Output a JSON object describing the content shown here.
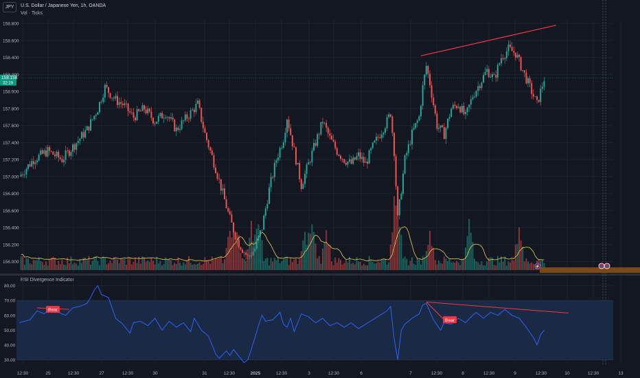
{
  "header": {
    "symbol": "JPY",
    "title": "U.S. Dollar / Japanese Yen, 1h, OANDA",
    "volume_label": "Vol · Ticks",
    "rsi_title": "RSI Divergence Indicator"
  },
  "price_badge": {
    "price": "158.158",
    "countdown": "32:19"
  },
  "colors": {
    "background": "#131722",
    "grid": "#1e222d",
    "up": "#26a69a",
    "down": "#ef5350",
    "volume_ma": "#e6d04a",
    "rsi_line": "#2962ff",
    "rsi_band": "#1b2a44",
    "divergence": "#f23645",
    "text": "#b2b5be",
    "price_badge": "#089981"
  },
  "chart_data": [
    {
      "type": "candlestick",
      "title": "U.S. Dollar / Japanese Yen, 1h, OANDA",
      "y_ticks": [
        "158.800",
        "158.600",
        "158.400",
        "158.200",
        "158.000",
        "157.800",
        "157.600",
        "157.400",
        "157.200",
        "157.000",
        "156.800",
        "156.600",
        "156.400",
        "156.200",
        "156.000"
      ],
      "ylim": [
        155.9,
        158.85
      ],
      "x_ticks": [
        "12:30",
        "25",
        "12:30",
        "27",
        "12:30",
        "30",
        "31",
        "12:30",
        "2025",
        "12:30",
        "3",
        "12:30",
        "6",
        "7",
        "12:30",
        "8",
        "12:30",
        "9",
        "12:30",
        "10",
        "12:30",
        "13"
      ],
      "last_price": 158.158,
      "close_path": [
        [
          0,
          157.0
        ],
        [
          8,
          157.2
        ],
        [
          16,
          157.3
        ],
        [
          24,
          157.2
        ],
        [
          30,
          157.35
        ],
        [
          38,
          157.55
        ],
        [
          44,
          157.8
        ],
        [
          48,
          158.05
        ],
        [
          54,
          157.9
        ],
        [
          58,
          157.85
        ],
        [
          64,
          157.7
        ],
        [
          70,
          157.8
        ],
        [
          76,
          157.65
        ],
        [
          82,
          157.75
        ],
        [
          88,
          157.55
        ],
        [
          94,
          157.7
        ],
        [
          100,
          157.85
        ],
        [
          104,
          157.5
        ],
        [
          110,
          157.1
        ],
        [
          114,
          156.8
        ],
        [
          118,
          156.5
        ],
        [
          122,
          156.25
        ],
        [
          128,
          156.05
        ],
        [
          132,
          156.15
        ],
        [
          136,
          156.4
        ],
        [
          140,
          156.85
        ],
        [
          144,
          157.2
        ],
        [
          148,
          157.45
        ],
        [
          150,
          157.7
        ],
        [
          154,
          157.3
        ],
        [
          158,
          156.9
        ],
        [
          162,
          157.15
        ],
        [
          166,
          157.4
        ],
        [
          170,
          157.65
        ],
        [
          174,
          157.45
        ],
        [
          178,
          157.3
        ],
        [
          182,
          157.2
        ],
        [
          186,
          157.15
        ],
        [
          190,
          157.25
        ],
        [
          194,
          157.15
        ],
        [
          198,
          157.35
        ],
        [
          202,
          157.5
        ],
        [
          206,
          157.65
        ],
        [
          208,
          157.75
        ],
        [
          210,
          157.3
        ],
        [
          212,
          156.5
        ],
        [
          216,
          157.2
        ],
        [
          220,
          157.5
        ],
        [
          224,
          157.7
        ],
        [
          226,
          158.05
        ],
        [
          228,
          158.3
        ],
        [
          230,
          158.1
        ],
        [
          234,
          157.6
        ],
        [
          238,
          157.5
        ],
        [
          242,
          157.8
        ],
        [
          246,
          157.85
        ],
        [
          250,
          157.7
        ],
        [
          254,
          157.95
        ],
        [
          258,
          158.1
        ],
        [
          262,
          158.25
        ],
        [
          266,
          158.15
        ],
        [
          270,
          158.4
        ],
        [
          274,
          158.5
        ],
        [
          278,
          158.45
        ],
        [
          282,
          158.25
        ],
        [
          286,
          158.05
        ],
        [
          290,
          157.85
        ],
        [
          294,
          158.15
        ]
      ]
    },
    {
      "type": "bar",
      "title": "Vol · Ticks",
      "note": "volume histogram with moving average overlay, relative scale",
      "spikes": [
        [
          118,
          6
        ],
        [
          122,
          7
        ],
        [
          130,
          7
        ],
        [
          134,
          8
        ],
        [
          160,
          6
        ],
        [
          164,
          7
        ],
        [
          172,
          6
        ],
        [
          210,
          9
        ],
        [
          212,
          10
        ],
        [
          230,
          6
        ],
        [
          252,
          8
        ],
        [
          280,
          7
        ]
      ]
    },
    {
      "type": "line",
      "title": "RSI Divergence Indicator",
      "y_ticks": [
        "80.00",
        "70.00",
        "60.00",
        "50.00",
        "40.00",
        "30.00"
      ],
      "ylim": [
        27,
        84
      ],
      "band": [
        30,
        70
      ],
      "values_path": [
        [
          0,
          55
        ],
        [
          6,
          57
        ],
        [
          10,
          63
        ],
        [
          14,
          61
        ],
        [
          18,
          65
        ],
        [
          22,
          62
        ],
        [
          26,
          60
        ],
        [
          30,
          65
        ],
        [
          34,
          66
        ],
        [
          38,
          68
        ],
        [
          40,
          72
        ],
        [
          42,
          77
        ],
        [
          44,
          80
        ],
        [
          46,
          74
        ],
        [
          50,
          72
        ],
        [
          54,
          58
        ],
        [
          58,
          54
        ],
        [
          62,
          48
        ],
        [
          64,
          55
        ],
        [
          68,
          56
        ],
        [
          72,
          53
        ],
        [
          76,
          58
        ],
        [
          80,
          50
        ],
        [
          84,
          56
        ],
        [
          88,
          52
        ],
        [
          92,
          55
        ],
        [
          96,
          49
        ],
        [
          98,
          58
        ],
        [
          102,
          50
        ],
        [
          106,
          46
        ],
        [
          108,
          40
        ],
        [
          110,
          34
        ],
        [
          112,
          31
        ],
        [
          116,
          36
        ],
        [
          118,
          33
        ],
        [
          120,
          37
        ],
        [
          124,
          31
        ],
        [
          126,
          28
        ],
        [
          128,
          30
        ],
        [
          130,
          37
        ],
        [
          132,
          45
        ],
        [
          134,
          53
        ],
        [
          136,
          60
        ],
        [
          138,
          56
        ],
        [
          142,
          57
        ],
        [
          146,
          62
        ],
        [
          148,
          54
        ],
        [
          150,
          52
        ],
        [
          152,
          58
        ],
        [
          154,
          49
        ],
        [
          158,
          61
        ],
        [
          162,
          59
        ],
        [
          166,
          55
        ],
        [
          170,
          58
        ],
        [
          174,
          53
        ],
        [
          178,
          55
        ],
        [
          182,
          52
        ],
        [
          186,
          55
        ],
        [
          190,
          51
        ],
        [
          194,
          54
        ],
        [
          198,
          57
        ],
        [
          202,
          60
        ],
        [
          206,
          63
        ],
        [
          208,
          66
        ],
        [
          210,
          44
        ],
        [
          212,
          30
        ],
        [
          214,
          50
        ],
        [
          216,
          54
        ],
        [
          220,
          58
        ],
        [
          224,
          61
        ],
        [
          226,
          67
        ],
        [
          228,
          68
        ],
        [
          232,
          57
        ],
        [
          236,
          50
        ],
        [
          238,
          55
        ],
        [
          242,
          54
        ],
        [
          246,
          58
        ],
        [
          250,
          55
        ],
        [
          254,
          60
        ],
        [
          256,
          62
        ],
        [
          260,
          58
        ],
        [
          264,
          62
        ],
        [
          268,
          60
        ],
        [
          272,
          64
        ],
        [
          276,
          60
        ],
        [
          280,
          58
        ],
        [
          284,
          52
        ],
        [
          288,
          45
        ],
        [
          290,
          40
        ],
        [
          292,
          47
        ],
        [
          294,
          50
        ]
      ]
    }
  ],
  "divergence_labels": [
    "Bear",
    "Bear"
  ],
  "markers": {
    "earnings_icon": "lightning-icon",
    "event_icon": "flag-icon"
  }
}
